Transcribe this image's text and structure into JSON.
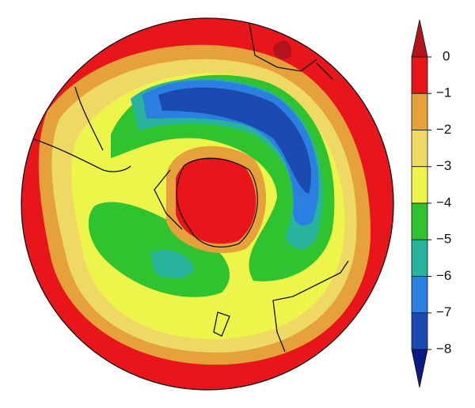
{
  "colorbar": {
    "lim": [
      -8,
      0
    ],
    "ticks": [
      0,
      {
        "value": -1,
        "label": "−1"
      },
      {
        "value": -2,
        "label": "−2"
      },
      {
        "value": -3,
        "label": "−3"
      },
      {
        "value": -4,
        "label": "−4"
      },
      {
        "value": -5,
        "label": "−5"
      },
      {
        "value": -6,
        "label": "−6"
      },
      {
        "value": -7,
        "label": "−7"
      },
      {
        "value": -8,
        "label": "−8"
      }
    ],
    "colors": [
      "#e8151b",
      "#e6a23a",
      "#eed964",
      "#eef54a",
      "#2fc42f",
      "#27b39c",
      "#2b7fe0",
      "#1b4bb0"
    ],
    "over_color": "#b3141c",
    "under_color": "#0b1b82"
  }
}
